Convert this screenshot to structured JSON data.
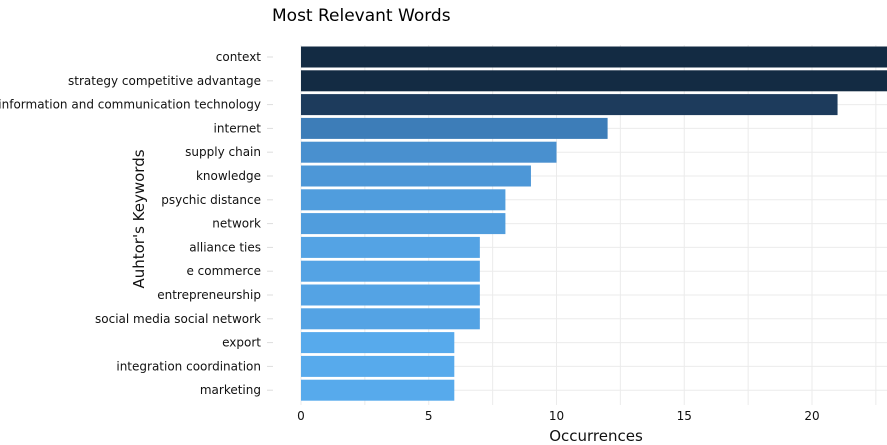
{
  "chart_data": {
    "type": "bar",
    "orientation": "horizontal",
    "title": "Most Relevant Words",
    "xlabel": "Occurrences",
    "ylabel": "Auhtor's Keywords",
    "categories": [
      "context",
      "strategy competitive advantage",
      "information and communication technology",
      "internet",
      "supply chain",
      "knowledge",
      "psychic distance",
      "network",
      "alliance ties",
      "e commerce",
      "entrepreneurship",
      "social media social network",
      "export",
      "integration coordination",
      "marketing"
    ],
    "values": [
      23,
      23,
      21,
      12,
      10,
      9,
      8,
      8,
      7,
      7,
      7,
      7,
      6,
      6,
      6
    ],
    "colors": [
      "#132b43",
      "#132b43",
      "#1d3b5c",
      "#3d7db8",
      "#4990cf",
      "#4d97d7",
      "#509ddd",
      "#509ddd",
      "#54a3e4",
      "#54a3e4",
      "#54a3e4",
      "#54a3e4",
      "#57aaec",
      "#57aaec",
      "#57aaec"
    ],
    "xticks": [
      0,
      5,
      10,
      15,
      20
    ],
    "xlim": [
      0,
      23
    ],
    "grid": true
  }
}
